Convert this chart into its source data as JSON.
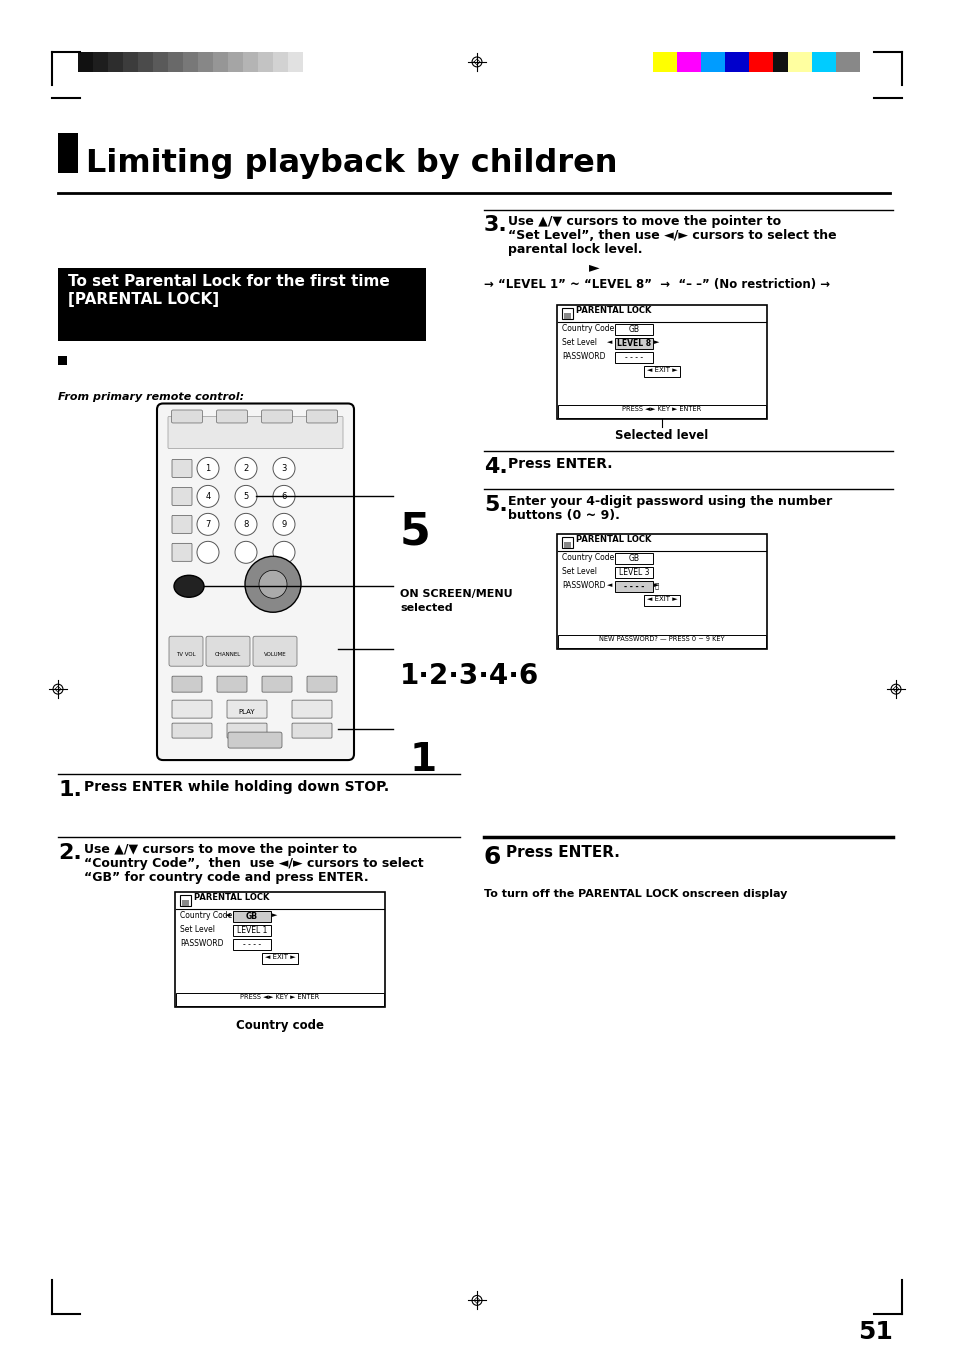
{
  "title": "Limiting playback by children",
  "page_number": "51",
  "bg_color": "#ffffff",
  "header_bar_colors_gray": [
    "#111111",
    "#1e1e1e",
    "#2d2d2d",
    "#3c3c3c",
    "#4b4b4b",
    "#5a5a5a",
    "#696969",
    "#787878",
    "#878787",
    "#969696",
    "#a5a5a5",
    "#b4b4b4",
    "#c3c3c3",
    "#d2d2d2",
    "#e1e1e1"
  ],
  "header_bar_colors_color": [
    "#ffff00",
    "#ff00ff",
    "#009cff",
    "#0000cc",
    "#ff0000",
    "#111111",
    "#ffffa0",
    "#00ccff",
    "#888888"
  ],
  "black_box_title_line1": "To set Parental Lock for the first time",
  "black_box_title_line2": "[PARENTAL LOCK]",
  "step1_num": "1.",
  "step1_bold": "Press ENTER while holding down STOP.",
  "step2_num": "2.",
  "step2_bold": "Use ▲/▼ cursors to move the pointer to",
  "step2_text1": "“Country Code”,  then  use ◄/► cursors to select",
  "step2_text2": "“GB” for country code and press ENTER.",
  "step3_num": "3.",
  "step3_bold": "Use ▲/▼ cursors to move the pointer to",
  "step3_text1": "“Set Level”, then use ◄/► cursors to select the",
  "step3_text2": "parental lock level.",
  "step3_arrow": "►",
  "step3_chain": "→ “LEVEL 1” ~ “LEVEL 8”  →  “– –” (No restriction) →",
  "step4_num": "4.",
  "step4_bold": "Press ENTER.",
  "step5_num": "5.",
  "step5_bold": "Enter your 4-digit password using the number",
  "step5_text": "buttons (0 ~ 9).",
  "step6_num": "6",
  "step6_bold": "Press ENTER.",
  "step6_sub": "To turn off the PARENTAL LOCK onscreen display",
  "from_primary": "From primary remote control:",
  "on_screen_line1": "ON SCREEN/MENU",
  "on_screen_line2": "selected",
  "num5": "5",
  "num1_2_3_4_6": "1·2·3·4·6",
  "num1": "1",
  "selected_level": "Selected level",
  "country_code_label": "Country code"
}
